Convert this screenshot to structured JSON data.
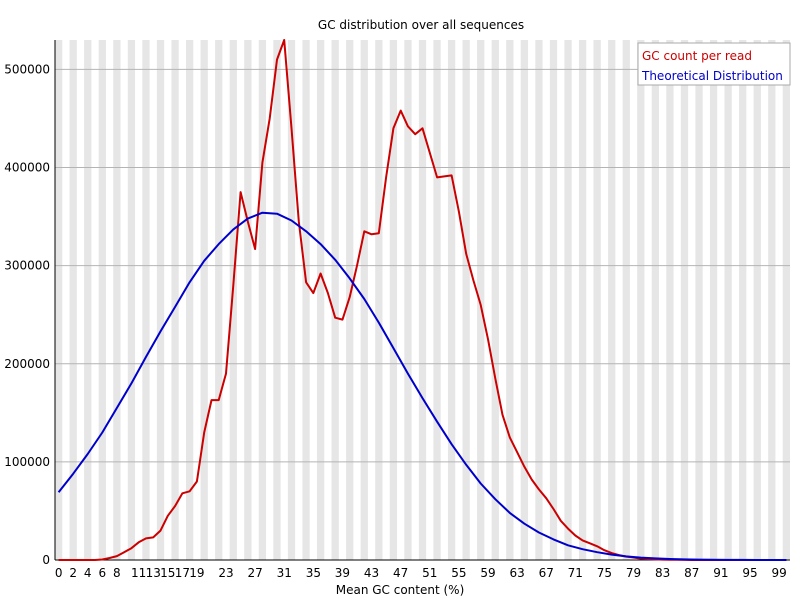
{
  "chart_data": {
    "type": "line",
    "title": "GC distribution over all sequences",
    "xlabel": "Mean GC content (%)",
    "ylabel": "",
    "xlim": [
      0,
      100
    ],
    "ylim": [
      0,
      530000
    ],
    "grid": true,
    "legend_position": "top-right",
    "x_tick_labels": [
      "0",
      "2",
      "4",
      "6",
      "8",
      "11",
      "13",
      "15",
      "17",
      "19",
      "23",
      "27",
      "31",
      "35",
      "39",
      "43",
      "47",
      "51",
      "55",
      "59",
      "63",
      "67",
      "71",
      "75",
      "79",
      "83",
      "87",
      "91",
      "95",
      "99"
    ],
    "y_ticks": [
      0,
      100000,
      200000,
      300000,
      400000,
      500000
    ],
    "y_tick_labels": [
      "0",
      "100000",
      "200000",
      "300000",
      "400000",
      "500000"
    ],
    "series": [
      {
        "name": "GC count per read",
        "color": "#cc0000",
        "x": [
          0,
          1,
          2,
          3,
          4,
          5,
          6,
          7,
          8,
          9,
          10,
          11,
          12,
          13,
          14,
          15,
          16,
          17,
          18,
          19,
          20,
          21,
          22,
          23,
          24,
          25,
          26,
          27,
          28,
          29,
          30,
          31,
          32,
          33,
          34,
          35,
          36,
          37,
          38,
          39,
          40,
          41,
          42,
          43,
          44,
          45,
          46,
          47,
          48,
          49,
          50,
          51,
          52,
          53,
          54,
          55,
          56,
          57,
          58,
          59,
          60,
          61,
          62,
          63,
          64,
          65,
          66,
          67,
          68,
          69,
          70,
          71,
          72,
          73,
          74,
          75,
          76,
          77,
          78,
          79,
          80,
          81,
          82,
          83,
          84,
          85,
          86,
          87,
          88,
          89,
          90,
          91,
          92,
          93,
          94,
          95,
          96,
          97,
          98,
          99,
          100
        ],
        "values": [
          0,
          0,
          0,
          0,
          0,
          0,
          500,
          2000,
          4000,
          8000,
          12000,
          18000,
          22000,
          23000,
          30000,
          45000,
          55000,
          68000,
          70000,
          80000,
          130000,
          163000,
          163000,
          190000,
          280000,
          375000,
          345000,
          317000,
          405000,
          450000,
          510000,
          530000,
          440000,
          345000,
          283000,
          272000,
          292000,
          272000,
          247000,
          245000,
          268000,
          300000,
          335000,
          332000,
          333000,
          390000,
          440000,
          458000,
          442000,
          434000,
          440000,
          415000,
          390000,
          391000,
          392000,
          355000,
          312000,
          285000,
          260000,
          225000,
          185000,
          148000,
          125000,
          110000,
          95000,
          82000,
          72000,
          63000,
          52000,
          40000,
          32000,
          25000,
          20000,
          17000,
          14000,
          10000,
          7000,
          5000,
          3500,
          2500,
          1500,
          1000,
          600,
          400,
          300,
          200,
          100,
          50,
          20,
          10,
          5,
          0,
          0,
          0,
          0,
          0,
          0,
          0,
          0,
          0,
          0
        ]
      },
      {
        "name": "Theoretical Distribution",
        "color": "#0000cc",
        "x": [
          0,
          2,
          4,
          6,
          8,
          10,
          12,
          14,
          16,
          18,
          20,
          22,
          24,
          26,
          28,
          30,
          32,
          34,
          36,
          38,
          40,
          42,
          44,
          46,
          48,
          50,
          52,
          54,
          56,
          58,
          60,
          62,
          64,
          66,
          68,
          70,
          72,
          74,
          76,
          78,
          80,
          82,
          84,
          86,
          88,
          90,
          92,
          94,
          96,
          98,
          100
        ],
        "values": [
          69000,
          88000,
          108000,
          130000,
          155000,
          180000,
          207000,
          233000,
          258000,
          283000,
          305000,
          322000,
          337000,
          348000,
          354000,
          353000,
          346000,
          335000,
          322000,
          306000,
          287000,
          266000,
          242000,
          216000,
          190000,
          165000,
          141000,
          118000,
          97000,
          78000,
          62000,
          48000,
          37000,
          28000,
          21000,
          15000,
          11000,
          8000,
          5500,
          3700,
          2400,
          1600,
          1000,
          600,
          400,
          250,
          150,
          80,
          40,
          20,
          10
        ]
      }
    ]
  }
}
